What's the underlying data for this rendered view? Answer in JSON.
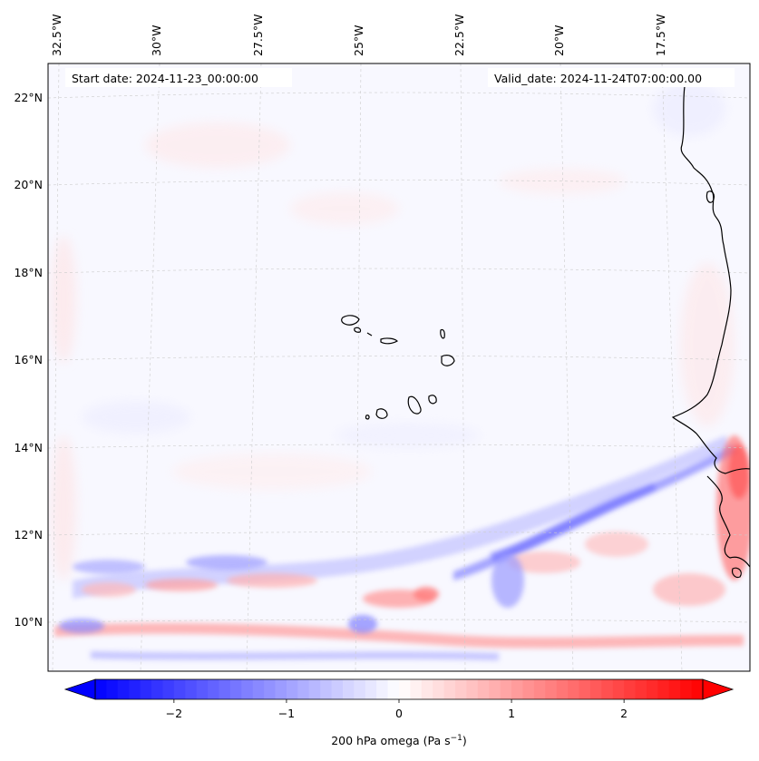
{
  "map": {
    "start_date_label": "Start date: 2024-11-23_00:00:00",
    "valid_date_label": "Valid_date: 2024-11-24T07:00:00.00",
    "lon_labels": [
      "32.5°W",
      "30°W",
      "27.5°W",
      "25°W",
      "22.5°W",
      "20°W",
      "17.5°W"
    ],
    "lat_labels": [
      "22°N",
      "20°N",
      "18°N",
      "16°N",
      "14°N",
      "12°N",
      "10°N"
    ],
    "colors": {
      "negative": "#0000ff",
      "zero": "#ffffff",
      "positive": "#ff0000",
      "coastline": "#000000",
      "background_field": "#f8f8ff"
    }
  },
  "colorbar": {
    "min": -2.7,
    "max": 2.7,
    "tick_values": [
      -2,
      -1,
      0,
      1,
      2
    ],
    "tick_labels": [
      "−2",
      "−1",
      "0",
      "1",
      "2"
    ],
    "label_prefix": "200 hPa omega (Pa s",
    "label_sup": "−1",
    "label_suffix": ")"
  }
}
